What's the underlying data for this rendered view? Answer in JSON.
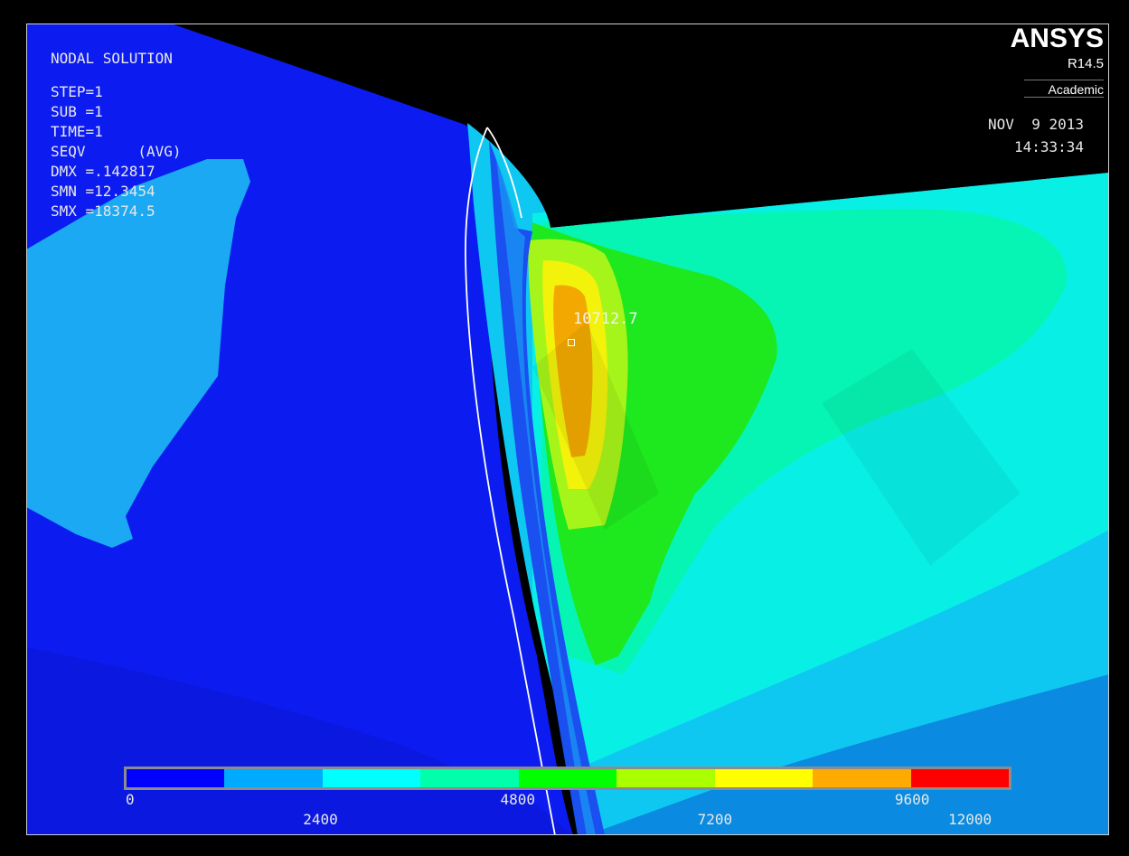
{
  "header": {
    "title": "NODAL SOLUTION",
    "lines": [
      "STEP=1",
      "SUB =1",
      "TIME=1",
      "SEQV      (AVG)",
      "DMX =.142817",
      "SMN =12.3454",
      "SMX =18374.5"
    ]
  },
  "brand": {
    "name": "ANSYS",
    "version": "R14.5",
    "edition": "Academic"
  },
  "timestamp": {
    "date": "NOV  9 2013",
    "time": "14:33:34"
  },
  "probe": {
    "value": "10712.7"
  },
  "legend": {
    "colors": [
      "#0000ff",
      "#00aaff",
      "#00ffff",
      "#00ffaa",
      "#00ff00",
      "#aaff00",
      "#ffff00",
      "#ffaa00",
      "#ff0000"
    ],
    "labels": [
      "0",
      "2400",
      "4800",
      "7200",
      "9600",
      "12000"
    ]
  },
  "colors": {
    "background": "#000000",
    "frame": "#cfcfcf",
    "text": "#e8e8e8"
  }
}
